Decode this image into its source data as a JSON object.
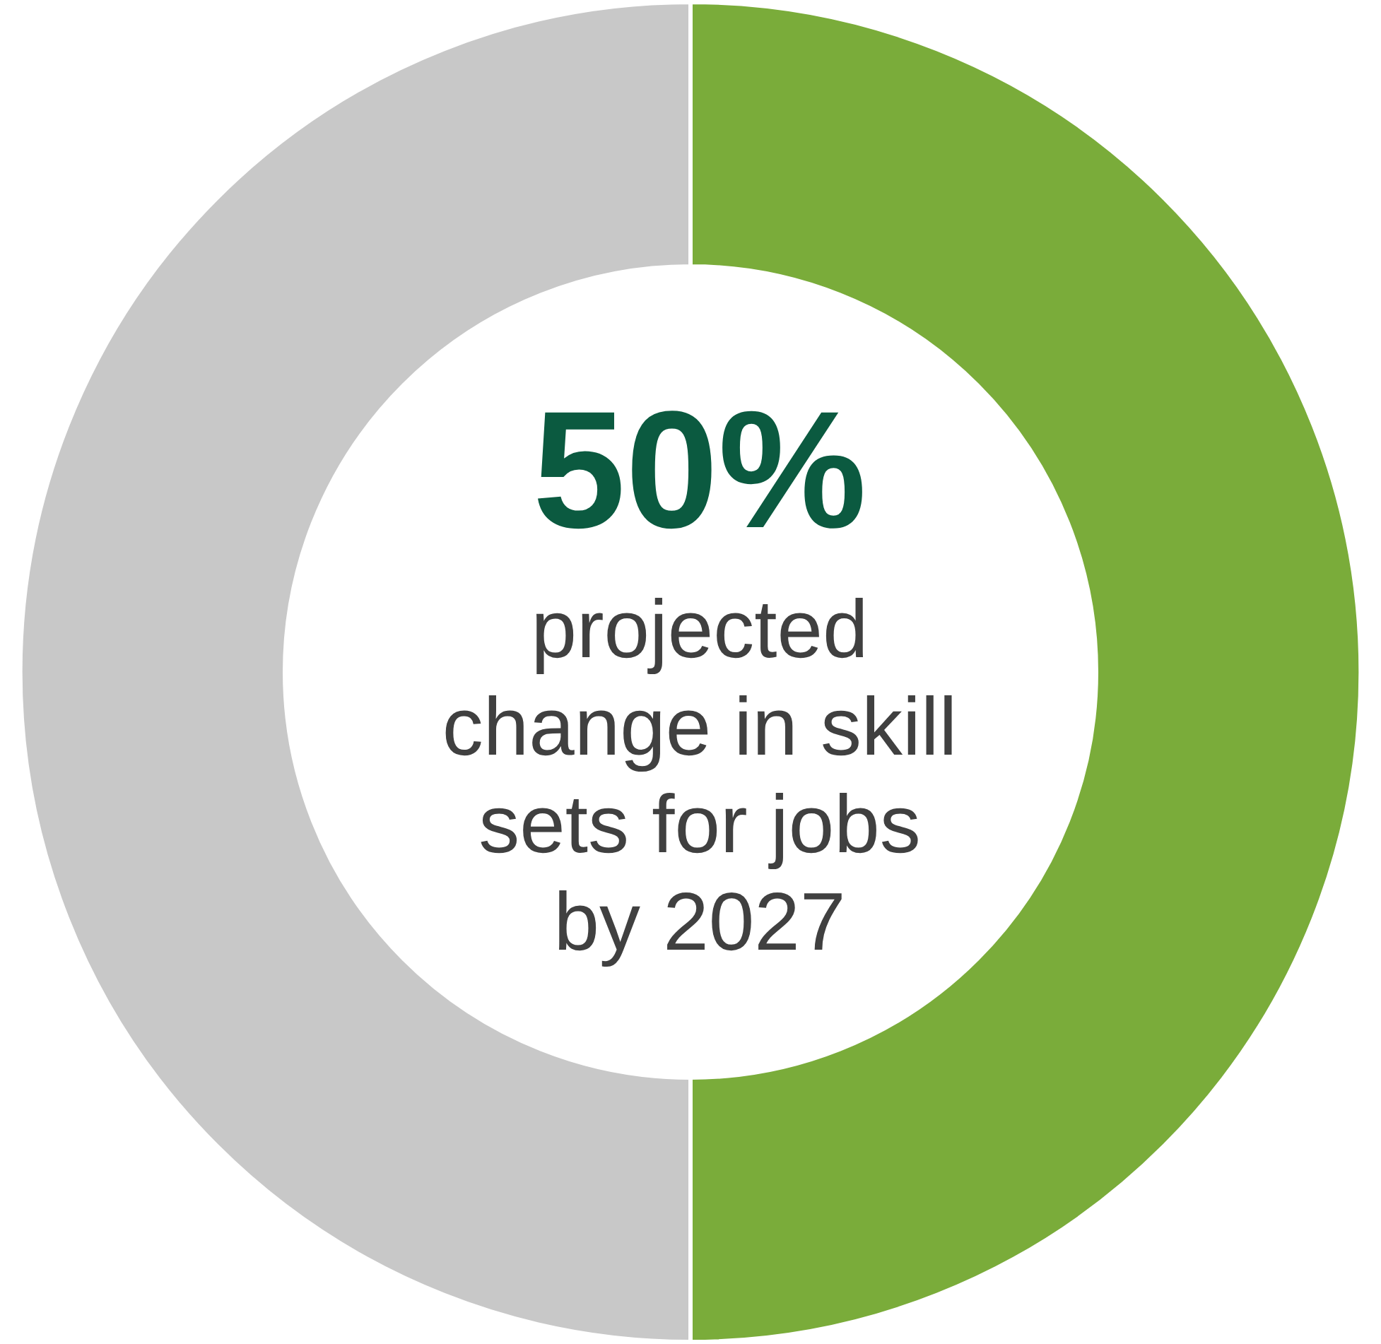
{
  "chart_data": {
    "type": "donut",
    "categories": [
      null,
      null
    ],
    "values": [
      50,
      50
    ],
    "colors": [
      "#7aac3a",
      "#c8c8c8"
    ],
    "annotations": [
      "50%",
      "projected change in skill sets for jobs by 2027"
    ]
  }
}
